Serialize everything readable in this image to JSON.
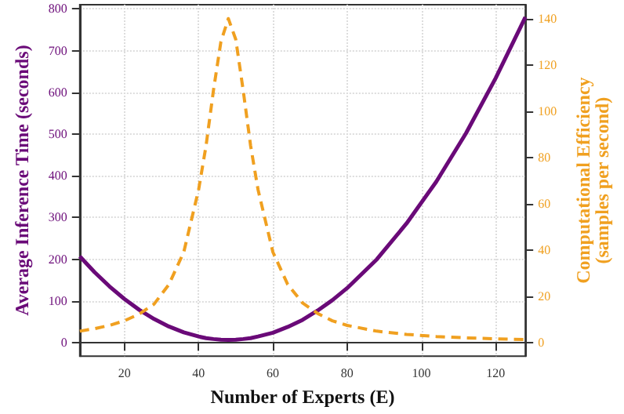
{
  "chart_data": {
    "type": "line",
    "xlabel": "Number of Experts (E)",
    "ylabel": "Average Inference Time (seconds)",
    "y2label": "Computational Efficiency\n(samples per second)",
    "x": [
      8,
      12,
      16,
      20,
      24,
      28,
      32,
      36,
      40,
      42,
      44,
      46,
      48,
      50,
      52,
      54,
      56,
      60,
      64,
      68,
      72,
      76,
      80,
      88,
      96,
      104,
      112,
      120,
      128
    ],
    "series": [
      {
        "color": "#6a0a78",
        "line_style": "solid",
        "values": [
          207,
          169,
          135,
          105,
          79,
          57,
          39,
          25,
          15,
          11,
          9,
          7.5,
          7,
          7.5,
          9,
          11,
          15,
          24,
          38,
          55,
          77,
          102,
          131,
          200,
          286,
          386,
          502,
          634,
          780
        ]
      },
      {
        "color": "#f0a020",
        "line_style": "dashed",
        "axis": "y2",
        "values": [
          4.8,
          5.9,
          7.3,
          9.3,
          12.2,
          16.5,
          25,
          39,
          66,
          85,
          109,
          130,
          140,
          131,
          109,
          85,
          66,
          39,
          25,
          17,
          12.5,
          9.3,
          7.3,
          4.8,
          3.4,
          2.5,
          1.9,
          1.5,
          1.2
        ]
      }
    ],
    "xlim": [
      8,
      128
    ],
    "xticks": [
      20,
      40,
      60,
      80,
      100,
      120
    ],
    "ylim": [
      -32,
      810
    ],
    "yticks": [
      0,
      100,
      200,
      300,
      400,
      500,
      600,
      700,
      800
    ],
    "y2lim": [
      -6,
      146
    ],
    "y2ticks": [
      0,
      20,
      40,
      60,
      80,
      100,
      120,
      140
    ],
    "grid": true,
    "marker": "none"
  }
}
